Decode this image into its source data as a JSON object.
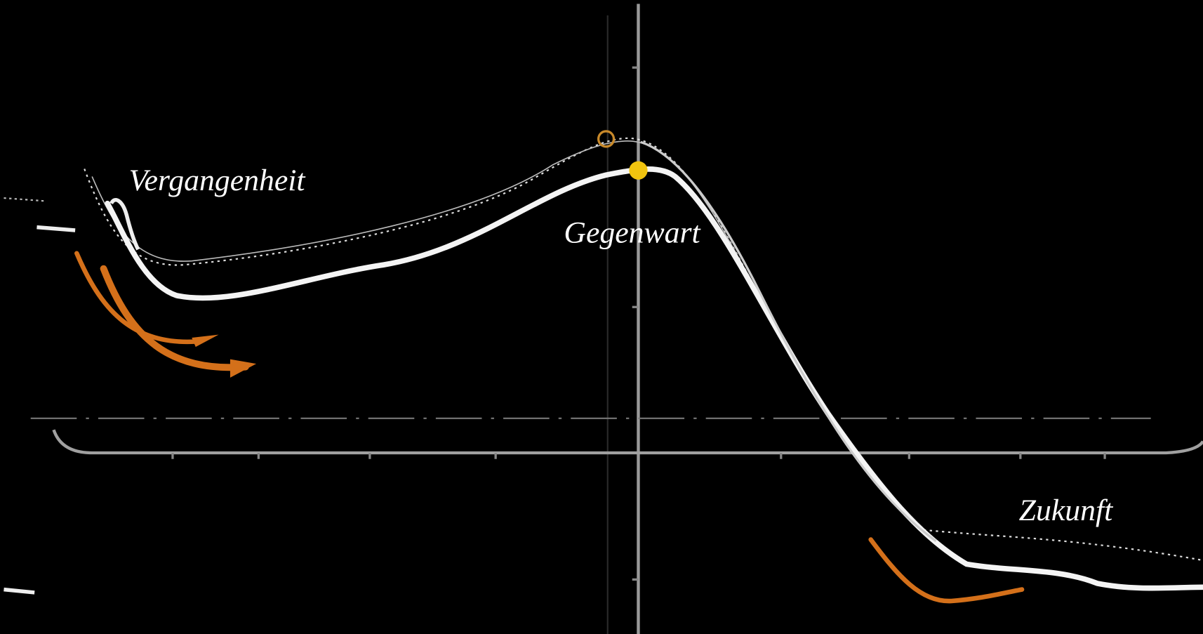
{
  "labels": {
    "past": "Vergangenheit",
    "present": "Gegenwart",
    "future": "Zukunft"
  }
}
